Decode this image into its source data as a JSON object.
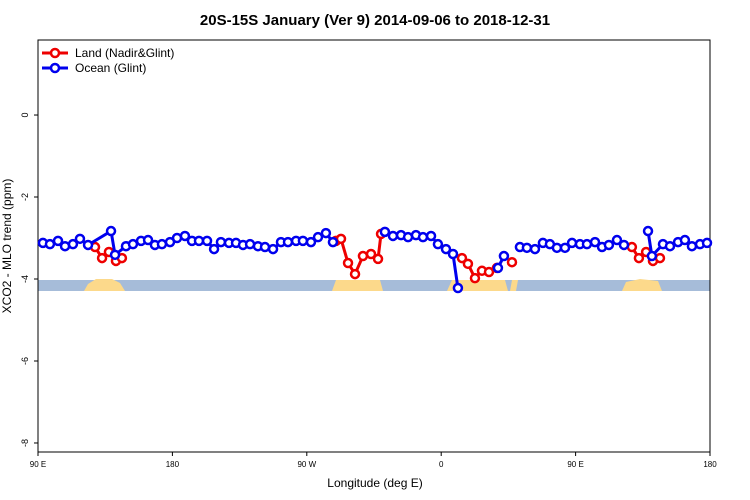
{
  "chart_data": {
    "type": "line",
    "title": "20S-15S January (Ver 9)   2014-09-06 to 2018-12-31",
    "x_label": "Longitude (deg E)",
    "y_label": "XCO2 - MLO trend (ppm)",
    "xlim": [
      90,
      540
    ],
    "xticks": [
      {
        "value": 90,
        "label": "90 E"
      },
      {
        "value": 180,
        "label": "180"
      },
      {
        "value": 270,
        "label": "90 W"
      },
      {
        "value": 360,
        "label": "0"
      },
      {
        "value": 450,
        "label": "90 E"
      },
      {
        "value": 540,
        "label": "180"
      }
    ],
    "ylim": [
      -8.22,
      1.83
    ],
    "yticks": [
      0,
      -2,
      -4,
      -6,
      -8
    ],
    "legend": "top-left",
    "series": [
      {
        "name": "Land (Nadir&Glint)",
        "color": "#ee0000",
        "x": [
          128.2,
          132.9,
          137.5,
          142.2,
          146.2,
          null,
          289.5,
          292.9,
          297.6,
          302.3,
          307.6,
          313.0,
          317.7,
          319.7,
          null,
          373.9,
          377.9,
          382.6,
          387.3,
          392.0,
          397.3,
          null,
          407.4,
          null,
          487.7,
          492.4,
          497.2,
          501.8,
          506.5
        ],
        "values": [
          -3.22,
          -3.49,
          -3.34,
          -3.56,
          -3.49,
          null,
          -3.07,
          -3.02,
          -3.61,
          -3.88,
          -3.44,
          -3.39,
          -3.51,
          -2.9,
          null,
          -3.49,
          -3.63,
          -3.98,
          -3.8,
          -3.83,
          -3.73,
          null,
          -3.59,
          null,
          -3.22,
          -3.49,
          -3.34,
          -3.56,
          -3.49
        ]
      },
      {
        "name": "Ocean (Glint)",
        "color": "#0000ee",
        "x": [
          93.3,
          98.0,
          103.4,
          108.1,
          113.4,
          118.1,
          123.5,
          138.9,
          141.6,
          148.9,
          153.6,
          159.0,
          163.7,
          168.3,
          173.0,
          178.4,
          183.1,
          188.4,
          193.1,
          197.8,
          203.2,
          207.9,
          212.5,
          217.9,
          222.6,
          227.3,
          232.0,
          237.3,
          242.0,
          247.4,
          252.7,
          257.4,
          262.8,
          267.4,
          272.8,
          277.5,
          282.8,
          287.5,
          null,
          322.3,
          327.7,
          333.1,
          337.8,
          343.1,
          347.8,
          353.2,
          357.8,
          363.2,
          367.9,
          371.2,
          null,
          398.0,
          402.0,
          null,
          412.7,
          417.4,
          422.8,
          428.1,
          432.8,
          437.5,
          442.9,
          447.6,
          452.9,
          457.6,
          463.0,
          467.7,
          472.3,
          477.7,
          482.4,
          null,
          498.5,
          501.1,
          508.5,
          513.2,
          518.6,
          523.2,
          527.9,
          533.3,
          538.0
        ],
        "values": [
          -3.12,
          -3.15,
          -3.07,
          -3.2,
          -3.15,
          -3.02,
          -3.17,
          -2.83,
          -3.41,
          -3.2,
          -3.15,
          -3.07,
          -3.05,
          -3.17,
          -3.15,
          -3.1,
          -3.0,
          -2.95,
          -3.07,
          -3.07,
          -3.07,
          -3.27,
          -3.1,
          -3.12,
          -3.12,
          -3.17,
          -3.15,
          -3.2,
          -3.22,
          -3.27,
          -3.1,
          -3.1,
          -3.07,
          -3.07,
          -3.1,
          -2.98,
          -2.88,
          -3.1,
          null,
          -2.85,
          -2.95,
          -2.93,
          -2.98,
          -2.93,
          -2.98,
          -2.95,
          -3.15,
          -3.27,
          -3.39,
          -4.22,
          null,
          -3.73,
          -3.44,
          null,
          -3.22,
          -3.24,
          -3.27,
          -3.12,
          -3.15,
          -3.24,
          -3.24,
          -3.12,
          -3.15,
          -3.15,
          -3.1,
          -3.22,
          -3.17,
          -3.05,
          -3.17,
          null,
          -2.83,
          -3.44,
          -3.15,
          -3.2,
          -3.1,
          -3.05,
          -3.2,
          -3.15,
          -3.12
        ]
      }
    ]
  }
}
